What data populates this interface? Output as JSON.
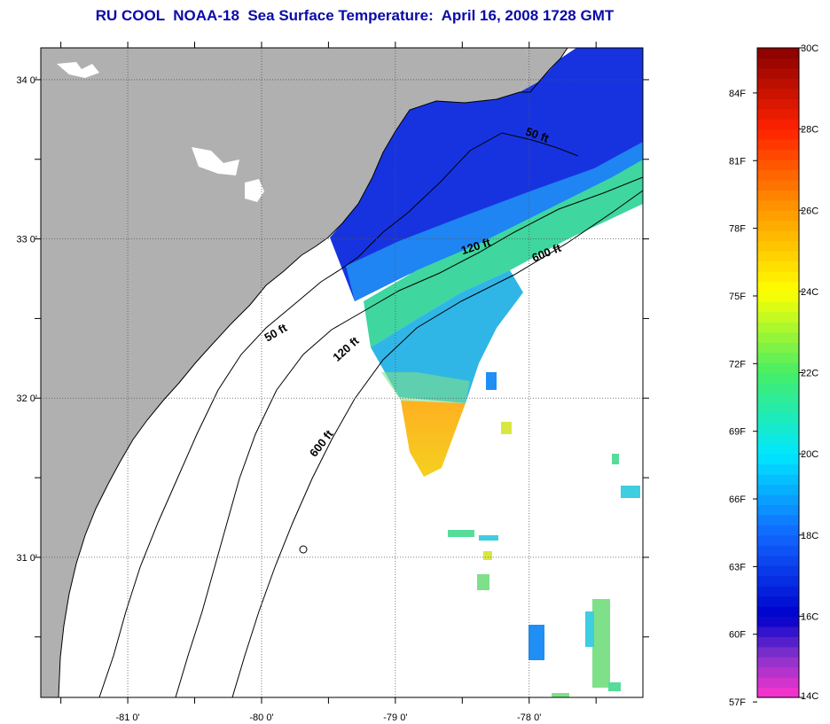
{
  "title": "RU COOL  NOAA-18  Sea Surface Temperature:  April 16, 2008 1728 GMT",
  "map": {
    "lon_range": [
      -81.65,
      -77.15
    ],
    "lat_range": [
      30.12,
      34.2
    ],
    "lat_labels": [
      {
        "value": 34,
        "text": "34 0'"
      },
      {
        "value": 33,
        "text": "33 0'"
      },
      {
        "value": 32,
        "text": "32 0'"
      },
      {
        "value": 31,
        "text": "31 0'"
      }
    ],
    "lon_labels": [
      {
        "value": -81,
        "text": "-81 0'"
      },
      {
        "value": -80,
        "text": "-80 0'"
      },
      {
        "value": -79,
        "text": "-79 0'"
      },
      {
        "value": -78,
        "text": "-78 0'"
      }
    ],
    "contour_labels": [
      {
        "text": "50 ft",
        "lon": -77.95,
        "lat": 33.63,
        "angle": 20
      },
      {
        "text": "120 ft",
        "lon": -78.39,
        "lat": 32.93,
        "angle": -18
      },
      {
        "text": "600 ft",
        "lon": -77.86,
        "lat": 32.89,
        "angle": -22
      },
      {
        "text": "50 ft",
        "lon": -79.88,
        "lat": 32.39,
        "angle": -30
      },
      {
        "text": "120 ft",
        "lon": -79.35,
        "lat": 32.29,
        "angle": -42
      },
      {
        "text": "600 ft",
        "lon": -79.53,
        "lat": 31.7,
        "angle": -52
      }
    ],
    "colors": {
      "land": "#b0b0b0",
      "ocean": "#ffffff",
      "contour": "#000000",
      "grid": "#555555"
    }
  },
  "colorbar": {
    "celsius_labels": [
      "30C",
      "28C",
      "26C",
      "24C",
      "22C",
      "20C",
      "18C",
      "16C",
      "14C"
    ],
    "fahrenheit_labels": [
      "84F",
      "81F",
      "78F",
      "75F",
      "72F",
      "69F",
      "66F",
      "63F",
      "60F",
      "57F"
    ],
    "range_c": [
      14,
      30
    ],
    "stops": [
      {
        "c": 14,
        "color": "#ff33cc"
      },
      {
        "c": 15,
        "color": "#8833cc"
      },
      {
        "c": 16,
        "color": "#0000cc"
      },
      {
        "c": 18,
        "color": "#1166ff"
      },
      {
        "c": 20,
        "color": "#00e8ff"
      },
      {
        "c": 22,
        "color": "#44ee66"
      },
      {
        "c": 24,
        "color": "#ffff00"
      },
      {
        "c": 26,
        "color": "#ff9900"
      },
      {
        "c": 28,
        "color": "#ff2200"
      },
      {
        "c": 30,
        "color": "#880000"
      }
    ]
  },
  "sst_values_c": {
    "cold_shelf": 16.6,
    "mid_shelf": 18.5,
    "shelf_break": 21.5,
    "warm_patch": 25.0
  }
}
